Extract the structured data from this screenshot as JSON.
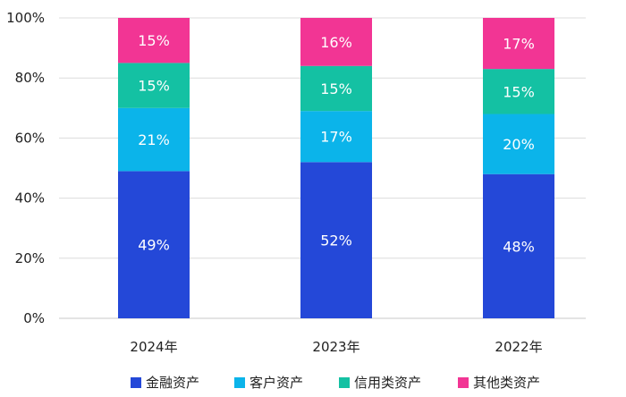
{
  "chart_data": {
    "type": "bar",
    "stacked": true,
    "title": "",
    "xlabel": "",
    "ylabel": "",
    "ylim": [
      0,
      100
    ],
    "yticks": [
      "0%",
      "20%",
      "40%",
      "60%",
      "80%",
      "100%"
    ],
    "categories": [
      "2024年",
      "2023年",
      "2022年"
    ],
    "series": [
      {
        "name": "金融资产",
        "color": "#2448d8",
        "values": [
          49,
          52,
          48
        ],
        "labels": [
          "49%",
          "52%",
          "48%"
        ]
      },
      {
        "name": "客户资产",
        "color": "#0bb4ea",
        "values": [
          21,
          17,
          20
        ],
        "labels": [
          "21%",
          "17%",
          "20%"
        ]
      },
      {
        "name": "信用类资产",
        "color": "#14c1a3",
        "values": [
          15,
          15,
          15
        ],
        "labels": [
          "15%",
          "15%",
          "15%"
        ]
      },
      {
        "name": "其他类资产",
        "color": "#f23594",
        "values": [
          15,
          16,
          17
        ],
        "labels": [
          "15%",
          "16%",
          "17%"
        ]
      }
    ],
    "legend_position": "bottom",
    "grid": true
  }
}
